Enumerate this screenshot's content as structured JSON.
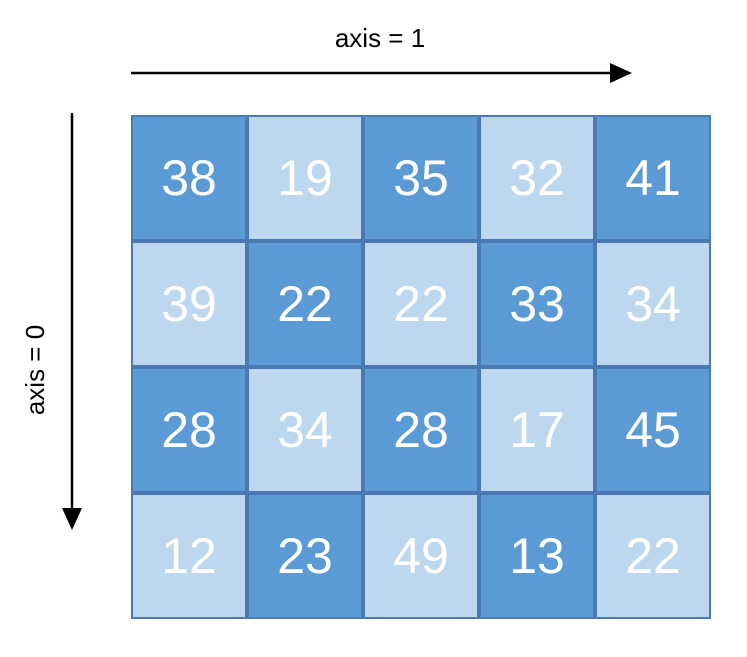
{
  "axis_top": {
    "label": "axis = 1"
  },
  "axis_left": {
    "label": "axis = 0"
  },
  "colors": {
    "dark": "#5b9bd5",
    "light": "#bdd7ee",
    "border": "#4a79b4",
    "text": "#ffffff"
  },
  "grid": {
    "rows": [
      [
        "38",
        "19",
        "35",
        "32",
        "41"
      ],
      [
        "39",
        "22",
        "22",
        "33",
        "34"
      ],
      [
        "28",
        "34",
        "28",
        "17",
        "45"
      ],
      [
        "12",
        "23",
        "49",
        "13",
        "22"
      ]
    ],
    "shades": [
      [
        "dark",
        "light",
        "dark",
        "light",
        "dark"
      ],
      [
        "light",
        "dark",
        "light",
        "dark",
        "light"
      ],
      [
        "dark",
        "light",
        "dark",
        "light",
        "dark"
      ],
      [
        "light",
        "dark",
        "light",
        "dark",
        "light"
      ]
    ]
  }
}
